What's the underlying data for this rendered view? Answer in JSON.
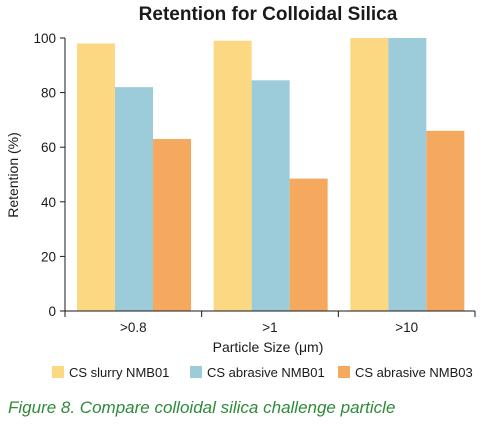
{
  "chart_data": {
    "type": "bar",
    "title": "Retention for Colloidal Silica",
    "xlabel": "Particle Size (μm)",
    "ylabel": "Retention (%)",
    "categories": [
      ">0.8",
      ">1",
      ">10"
    ],
    "ylim": [
      0,
      100
    ],
    "yticks": [
      0,
      20,
      40,
      60,
      80,
      100
    ],
    "grid": false,
    "legend_position": "bottom",
    "series": [
      {
        "name": "CS slurry NMB01",
        "color": "#fcd882",
        "values": [
          98,
          99,
          100
        ]
      },
      {
        "name": "CS abrasive NMB01",
        "color": "#9ccbd9",
        "values": [
          82,
          84.5,
          100
        ]
      },
      {
        "name": "CS abrasive NMB03",
        "color": "#f4a95e",
        "values": [
          63,
          48.5,
          66
        ]
      }
    ]
  },
  "caption": "Figure 8. Compare colloidal silica challenge particle"
}
